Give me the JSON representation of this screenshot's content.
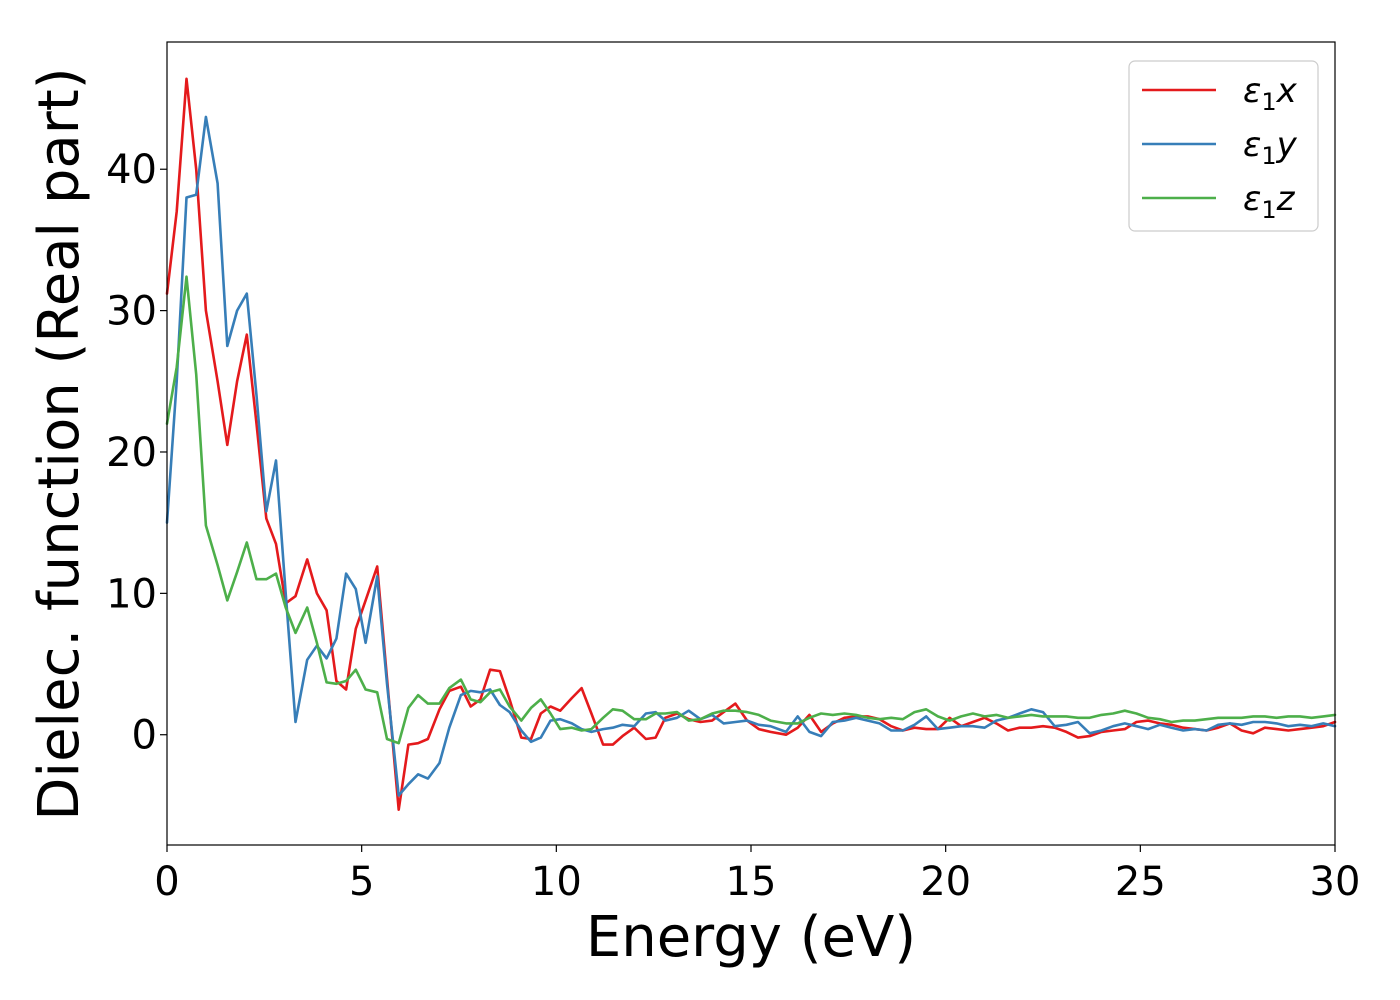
{
  "chart_data": {
    "type": "line",
    "xlabel": "Energy (eV)",
    "ylabel": "Dielec. function (Real part)",
    "xlim": [
      0,
      30
    ],
    "ylim": [
      -7.8,
      49
    ],
    "xticks": [
      0,
      5,
      10,
      15,
      20,
      25,
      30
    ],
    "yticks": [
      0,
      10,
      20,
      30,
      40
    ],
    "grid": false,
    "legend_position": "top-right",
    "series": [
      {
        "name": "ε₁x",
        "legend_main": "ε",
        "legend_sub": "1",
        "legend_suffix": "x",
        "color": "#e41a1c",
        "x": [
          0,
          0.25,
          0.5,
          0.75,
          1.0,
          1.3,
          1.55,
          1.8,
          2.05,
          2.3,
          2.55,
          2.8,
          3.05,
          3.3,
          3.6,
          3.85,
          4.1,
          4.35,
          4.6,
          4.85,
          5.1,
          5.4,
          5.65,
          5.95,
          6.2,
          6.45,
          6.7,
          7.0,
          7.25,
          7.55,
          7.8,
          8.05,
          8.3,
          8.55,
          8.8,
          9.1,
          9.35,
          9.6,
          9.85,
          10.1,
          10.4,
          10.65,
          10.9,
          11.2,
          11.45,
          11.7,
          12.0,
          12.3,
          12.55,
          12.8,
          13.1,
          13.4,
          13.7,
          14.0,
          14.3,
          14.6,
          14.9,
          15.2,
          15.5,
          15.9,
          16.2,
          16.5,
          16.8,
          17.1,
          17.4,
          17.7,
          18.0,
          18.3,
          18.6,
          18.9,
          19.2,
          19.5,
          19.8,
          20.1,
          20.4,
          20.7,
          21.0,
          21.3,
          21.6,
          21.9,
          22.2,
          22.5,
          22.8,
          23.1,
          23.4,
          23.7,
          24.0,
          24.3,
          24.6,
          24.9,
          25.2,
          25.5,
          25.8,
          26.1,
          26.4,
          26.7,
          27.0,
          27.3,
          27.6,
          27.9,
          28.2,
          28.5,
          28.8,
          29.1,
          29.4,
          29.7,
          30.0
        ],
        "y": [
          31.2,
          37.0,
          46.4,
          40.0,
          30.0,
          25.0,
          20.5,
          25.0,
          28.3,
          22.0,
          15.3,
          13.5,
          9.3,
          9.8,
          12.4,
          10.0,
          8.8,
          3.8,
          3.2,
          7.5,
          9.5,
          11.9,
          4.0,
          -5.3,
          -0.7,
          -0.6,
          -0.3,
          1.8,
          3.1,
          3.4,
          2.0,
          2.5,
          4.6,
          4.5,
          2.5,
          -0.2,
          -0.3,
          1.5,
          2.0,
          1.7,
          2.6,
          3.3,
          1.5,
          -0.7,
          -0.7,
          -0.1,
          0.5,
          -0.3,
          -0.2,
          1.2,
          1.5,
          1.1,
          0.9,
          1.0,
          1.6,
          2.2,
          1.0,
          0.4,
          0.2,
          0.0,
          0.5,
          1.4,
          0.2,
          0.8,
          1.2,
          1.3,
          1.3,
          1.1,
          0.6,
          0.3,
          0.5,
          0.4,
          0.4,
          1.2,
          0.6,
          0.9,
          1.2,
          0.8,
          0.3,
          0.5,
          0.5,
          0.6,
          0.5,
          0.2,
          -0.2,
          -0.1,
          0.2,
          0.3,
          0.4,
          0.9,
          1.0,
          0.8,
          0.7,
          0.5,
          0.4,
          0.3,
          0.5,
          0.8,
          0.3,
          0.1,
          0.5,
          0.4,
          0.3,
          0.4,
          0.5,
          0.6,
          0.9
        ]
      },
      {
        "name": "ε₁y",
        "legend_main": "ε",
        "legend_sub": "1",
        "legend_suffix": "y",
        "color": "#377eb8",
        "x": [
          0,
          0.25,
          0.5,
          0.75,
          1.0,
          1.3,
          1.55,
          1.8,
          2.05,
          2.3,
          2.55,
          2.8,
          3.05,
          3.3,
          3.6,
          3.85,
          4.1,
          4.35,
          4.6,
          4.85,
          5.1,
          5.4,
          5.65,
          5.95,
          6.2,
          6.45,
          6.7,
          7.0,
          7.25,
          7.55,
          7.8,
          8.05,
          8.3,
          8.55,
          8.8,
          9.1,
          9.35,
          9.6,
          9.85,
          10.1,
          10.4,
          10.65,
          10.9,
          11.2,
          11.45,
          11.7,
          12.0,
          12.3,
          12.55,
          12.8,
          13.1,
          13.4,
          13.7,
          14.0,
          14.3,
          14.6,
          14.9,
          15.2,
          15.5,
          15.9,
          16.2,
          16.5,
          16.8,
          17.1,
          17.4,
          17.7,
          18.0,
          18.3,
          18.6,
          18.9,
          19.2,
          19.5,
          19.8,
          20.1,
          20.4,
          20.7,
          21.0,
          21.3,
          21.6,
          21.9,
          22.2,
          22.5,
          22.8,
          23.1,
          23.4,
          23.7,
          24.0,
          24.3,
          24.6,
          24.9,
          25.2,
          25.5,
          25.8,
          26.1,
          26.4,
          26.7,
          27.0,
          27.3,
          27.6,
          27.9,
          28.2,
          28.5,
          28.8,
          29.1,
          29.4,
          29.7,
          30.0
        ],
        "y": [
          15.0,
          25.0,
          38.0,
          38.2,
          43.7,
          39.0,
          27.5,
          30.0,
          31.2,
          24.0,
          15.8,
          19.4,
          10.0,
          0.9,
          5.3,
          6.3,
          5.4,
          6.8,
          11.4,
          10.3,
          6.5,
          11.2,
          3.6,
          -4.3,
          -3.5,
          -2.8,
          -3.1,
          -2.0,
          0.5,
          2.8,
          3.1,
          3.0,
          3.2,
          2.1,
          1.6,
          0.3,
          -0.5,
          -0.2,
          1.0,
          1.1,
          0.8,
          0.4,
          0.2,
          0.4,
          0.5,
          0.7,
          0.6,
          1.5,
          1.6,
          1.0,
          1.2,
          1.7,
          1.1,
          1.4,
          0.8,
          0.9,
          1.0,
          0.7,
          0.6,
          0.2,
          1.3,
          0.2,
          -0.1,
          0.9,
          1.0,
          1.2,
          1.0,
          0.8,
          0.3,
          0.3,
          0.7,
          1.3,
          0.4,
          0.5,
          0.6,
          0.6,
          0.5,
          1.0,
          1.2,
          1.5,
          1.8,
          1.6,
          0.6,
          0.7,
          0.9,
          0.1,
          0.3,
          0.6,
          0.8,
          0.6,
          0.4,
          0.7,
          0.5,
          0.3,
          0.4,
          0.3,
          0.7,
          0.8,
          0.7,
          0.9,
          0.9,
          0.8,
          0.6,
          0.7,
          0.6,
          0.8,
          0.6
        ]
      },
      {
        "name": "ε₁z",
        "legend_main": "ε",
        "legend_sub": "1",
        "legend_suffix": "z",
        "color": "#4daf4a",
        "x": [
          0,
          0.25,
          0.5,
          0.75,
          1.0,
          1.3,
          1.55,
          1.8,
          2.05,
          2.3,
          2.55,
          2.8,
          3.05,
          3.3,
          3.6,
          3.85,
          4.1,
          4.35,
          4.6,
          4.85,
          5.1,
          5.4,
          5.65,
          5.95,
          6.2,
          6.45,
          6.7,
          7.0,
          7.25,
          7.55,
          7.8,
          8.05,
          8.3,
          8.55,
          8.8,
          9.1,
          9.35,
          9.6,
          9.85,
          10.1,
          10.4,
          10.65,
          10.9,
          11.2,
          11.45,
          11.7,
          12.0,
          12.3,
          12.55,
          12.8,
          13.1,
          13.4,
          13.7,
          14.0,
          14.3,
          14.6,
          14.9,
          15.2,
          15.5,
          15.9,
          16.2,
          16.5,
          16.8,
          17.1,
          17.4,
          17.7,
          18.0,
          18.3,
          18.6,
          18.9,
          19.2,
          19.5,
          19.8,
          20.1,
          20.4,
          20.7,
          21.0,
          21.3,
          21.6,
          21.9,
          22.2,
          22.5,
          22.8,
          23.1,
          23.4,
          23.7,
          24.0,
          24.3,
          24.6,
          24.9,
          25.2,
          25.5,
          25.8,
          26.1,
          26.4,
          26.7,
          27.0,
          27.3,
          27.6,
          27.9,
          28.2,
          28.5,
          28.8,
          29.1,
          29.4,
          29.7,
          30.0
        ],
        "y": [
          22.0,
          26.0,
          32.4,
          25.5,
          14.8,
          12.0,
          9.5,
          11.5,
          13.6,
          11.0,
          11.0,
          11.4,
          9.0,
          7.2,
          9.0,
          6.5,
          3.7,
          3.6,
          3.8,
          4.6,
          3.2,
          3.0,
          -0.3,
          -0.6,
          1.9,
          2.8,
          2.2,
          2.2,
          3.3,
          3.9,
          2.5,
          2.3,
          3.0,
          3.2,
          2.0,
          1.0,
          1.9,
          2.5,
          1.5,
          0.4,
          0.5,
          0.3,
          0.4,
          1.2,
          1.8,
          1.7,
          1.1,
          1.1,
          1.5,
          1.5,
          1.6,
          1.0,
          1.1,
          1.5,
          1.7,
          1.7,
          1.6,
          1.4,
          1.0,
          0.8,
          0.8,
          1.2,
          1.5,
          1.4,
          1.5,
          1.4,
          1.2,
          1.1,
          1.2,
          1.1,
          1.6,
          1.8,
          1.3,
          1.0,
          1.3,
          1.5,
          1.3,
          1.4,
          1.2,
          1.3,
          1.4,
          1.3,
          1.3,
          1.3,
          1.2,
          1.2,
          1.4,
          1.5,
          1.7,
          1.5,
          1.2,
          1.1,
          0.9,
          1.0,
          1.0,
          1.1,
          1.2,
          1.2,
          1.2,
          1.3,
          1.3,
          1.2,
          1.3,
          1.3,
          1.2,
          1.3,
          1.4
        ]
      }
    ]
  }
}
